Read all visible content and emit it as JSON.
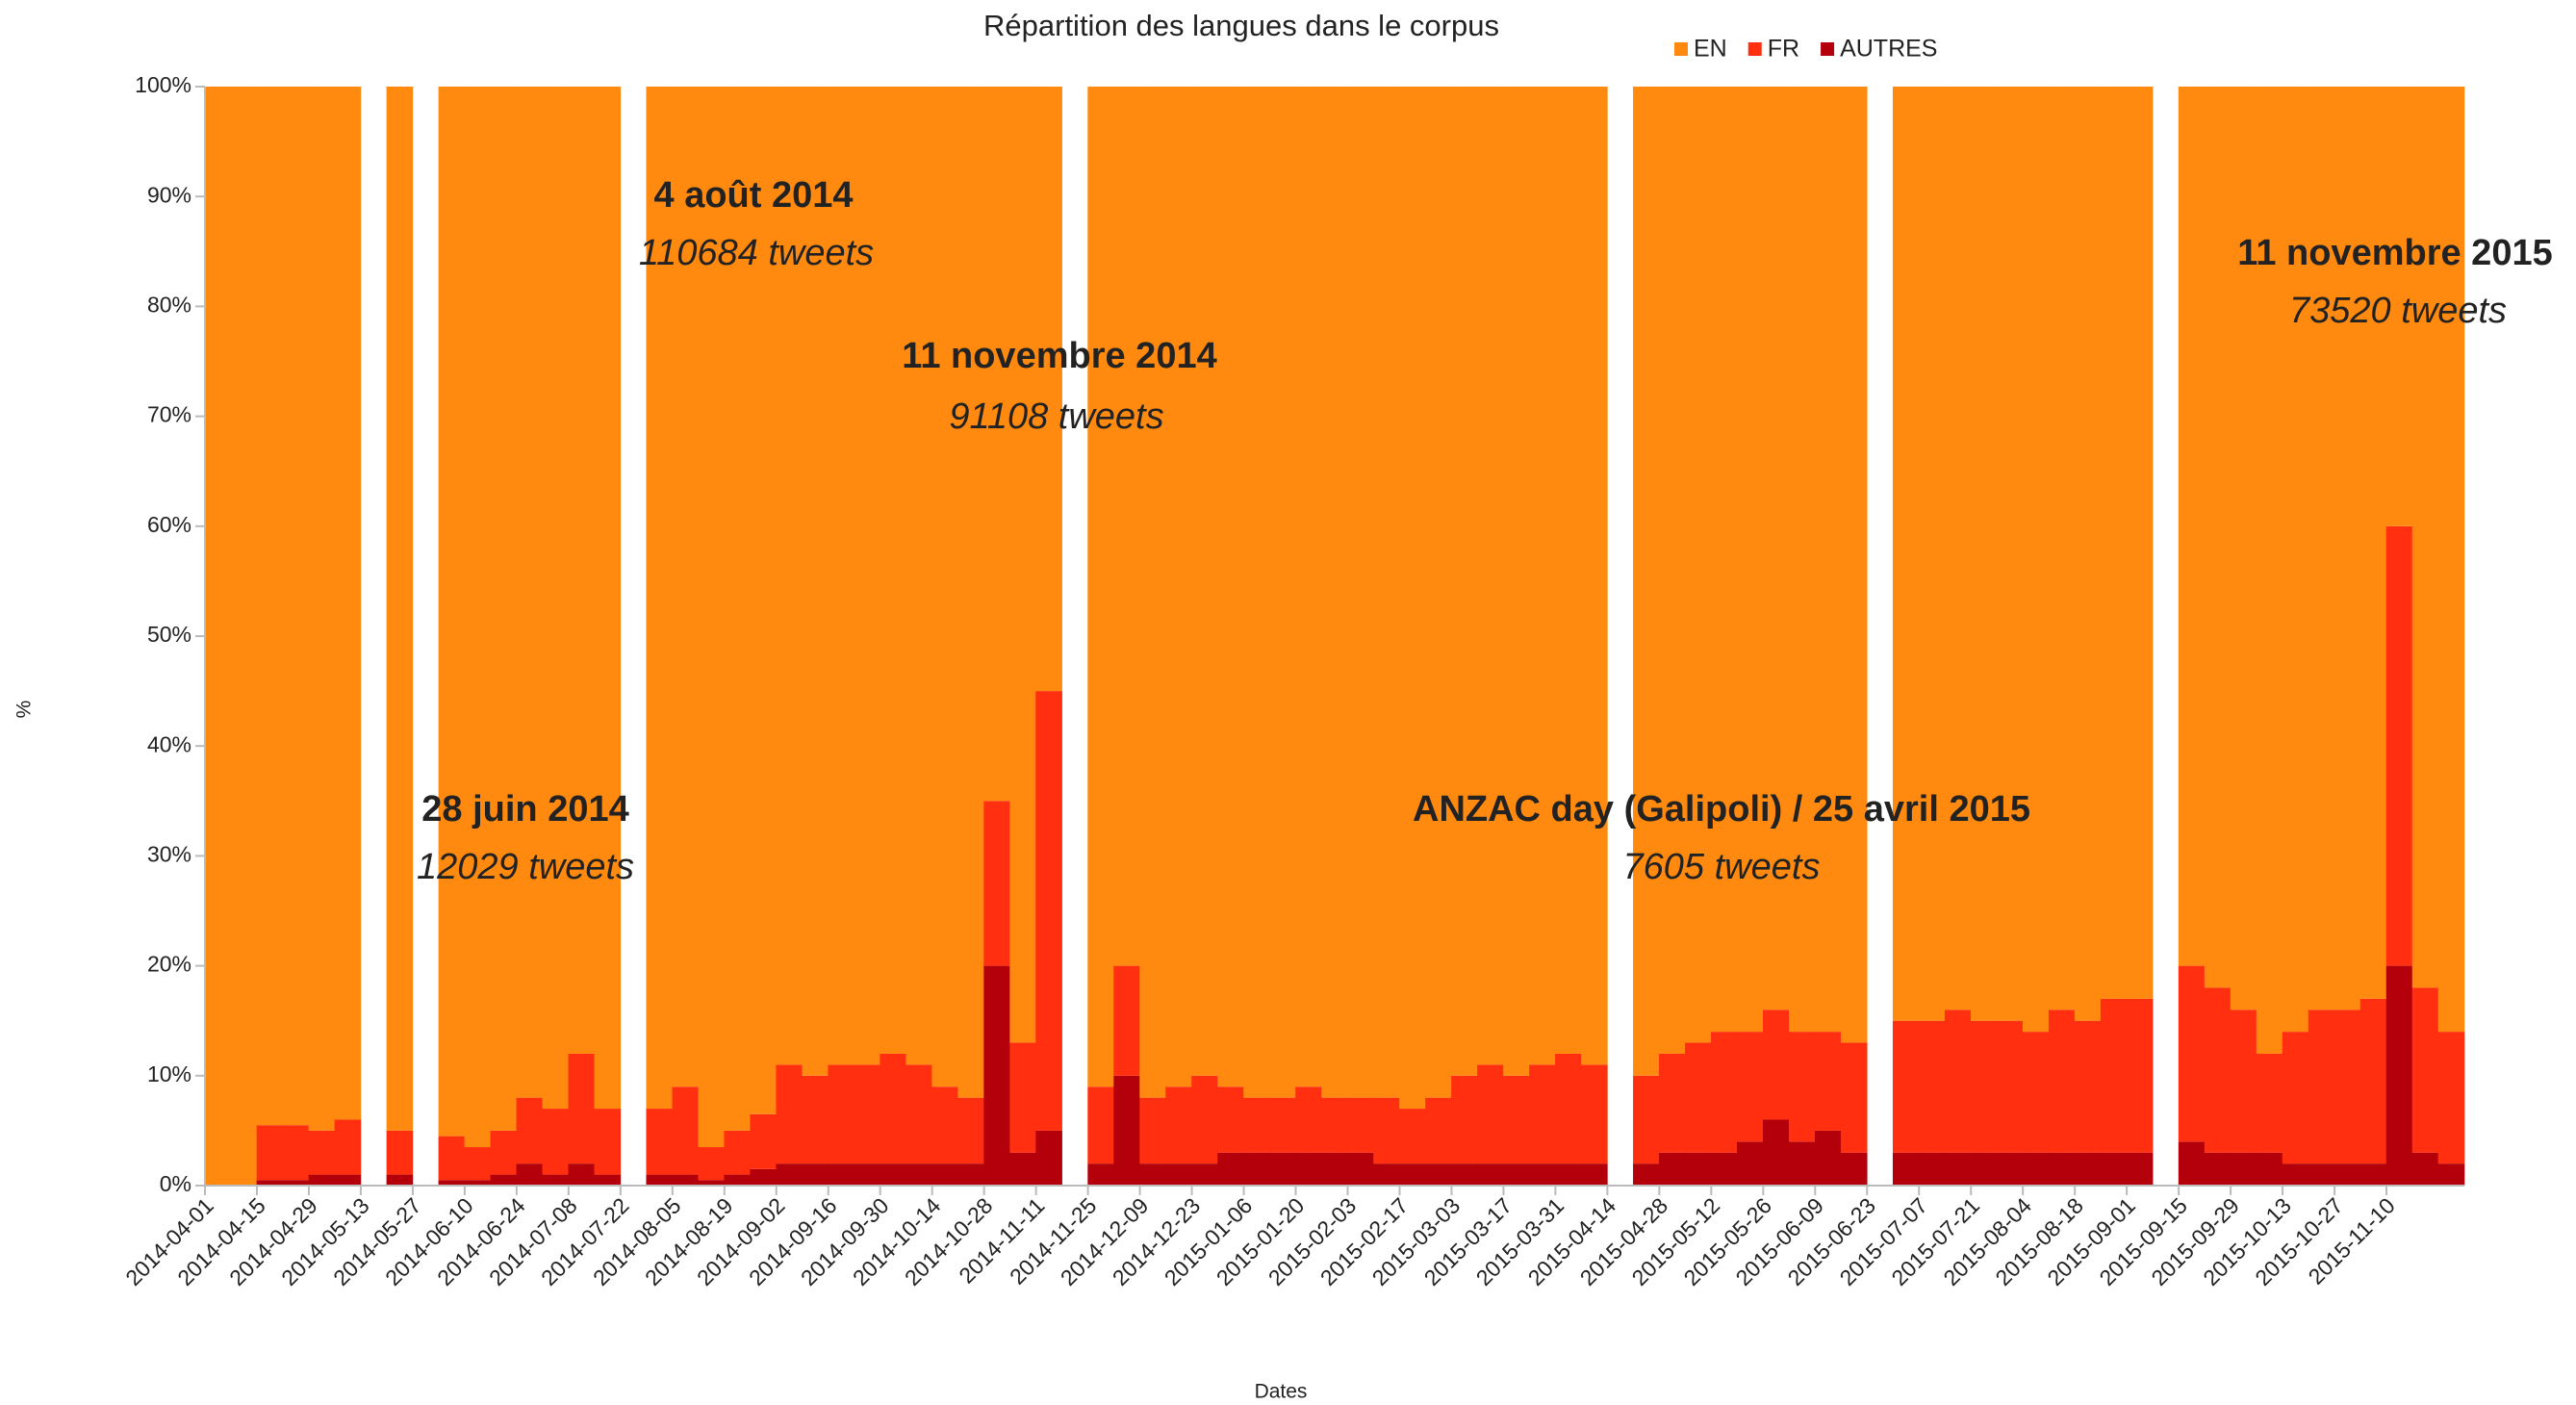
{
  "chart_data": {
    "type": "stacked_area_100",
    "title": "Répartition des langues dans le corpus",
    "x_label": "Dates",
    "y_label": "%",
    "categories": [
      "2014-04-01",
      null,
      "2014-04-15",
      null,
      "2014-04-29",
      null,
      "2014-05-13",
      null,
      "2014-05-27",
      null,
      "2014-06-10",
      null,
      "2014-06-24",
      null,
      "2014-07-08",
      null,
      "2014-07-22",
      null,
      "2014-08-05",
      null,
      "2014-08-19",
      null,
      "2014-09-02",
      null,
      "2014-09-16",
      null,
      "2014-09-30",
      null,
      "2014-10-14",
      null,
      "2014-10-28",
      null,
      "2014-11-11",
      null,
      "2014-11-25",
      null,
      "2014-12-09",
      null,
      "2014-12-23",
      null,
      "2015-01-06",
      null,
      "2015-01-20",
      null,
      "2015-02-03",
      null,
      "2015-02-17",
      null,
      "2015-03-03",
      null,
      "2015-03-17",
      null,
      "2015-03-31",
      null,
      "2015-04-14",
      null,
      "2015-04-28",
      null,
      "2015-05-12",
      null,
      "2015-05-26",
      null,
      "2015-06-09",
      null,
      "2015-06-23",
      null,
      "2015-07-07",
      null,
      "2015-07-21",
      null,
      "2015-08-04",
      null,
      "2015-08-18",
      null,
      "2015-09-01",
      null,
      "2015-09-15",
      null,
      "2015-09-29",
      null,
      "2015-10-13",
      null,
      "2015-10-27",
      null,
      "2015-11-10",
      null,
      null
    ],
    "series": [
      {
        "name": "AUTRES",
        "color": "#b3000a",
        "values": [
          0,
          0,
          0.5,
          0.5,
          1,
          1,
          null,
          1,
          null,
          0.5,
          0.5,
          1,
          2,
          1,
          2,
          1,
          null,
          1,
          1,
          0.5,
          1,
          1.5,
          2,
          2,
          2,
          2,
          2,
          2,
          2,
          2,
          20,
          3,
          5,
          null,
          2,
          10,
          2,
          2,
          2,
          3,
          3,
          3,
          3,
          3,
          3,
          2,
          2,
          2,
          2,
          2,
          2,
          2,
          2,
          2,
          null,
          2,
          3,
          3,
          3,
          4,
          6,
          4,
          5,
          3,
          null,
          3,
          3,
          3,
          3,
          3,
          3,
          3,
          3,
          3,
          3,
          null,
          4,
          3,
          3,
          3,
          2,
          2,
          2,
          2,
          20,
          3,
          2
        ]
      },
      {
        "name": "FR",
        "color": "#ff2f0f",
        "values": [
          0,
          0,
          5,
          5,
          4,
          5,
          null,
          4,
          null,
          4,
          3,
          4,
          6,
          6,
          10,
          6,
          null,
          6,
          8,
          3,
          4,
          5,
          9,
          8,
          9,
          9,
          10,
          9,
          7,
          6,
          15,
          10,
          40,
          null,
          7,
          10,
          6,
          7,
          8,
          6,
          5,
          5,
          6,
          5,
          5,
          6,
          5,
          6,
          8,
          9,
          8,
          9,
          10,
          9,
          null,
          8,
          9,
          10,
          11,
          10,
          10,
          10,
          9,
          10,
          null,
          12,
          12,
          13,
          12,
          12,
          11,
          13,
          12,
          14,
          14,
          null,
          16,
          15,
          13,
          9,
          12,
          14,
          14,
          15,
          40,
          15,
          12
        ]
      },
      {
        "name": "EN",
        "color": "#ff8a0f",
        "values": [
          100,
          100,
          94.5,
          94.5,
          95,
          94,
          null,
          95,
          null,
          95.5,
          96.5,
          95,
          92,
          93,
          88,
          93,
          null,
          93,
          91,
          96.5,
          95,
          93.5,
          89,
          90,
          89,
          89,
          88,
          89,
          91,
          92,
          65,
          87,
          55,
          null,
          91,
          80,
          92,
          91,
          90,
          91,
          92,
          92,
          91,
          92,
          92,
          92,
          93,
          92,
          90,
          89,
          90,
          89,
          88,
          89,
          null,
          90,
          88,
          87,
          86,
          86,
          84,
          86,
          86,
          87,
          null,
          85,
          85,
          84,
          85,
          85,
          86,
          84,
          85,
          83,
          83,
          null,
          80,
          82,
          84,
          88,
          86,
          84,
          84,
          83,
          40,
          82,
          86
        ]
      }
    ],
    "ylim": [
      0,
      100
    ],
    "yticks": [
      {
        "value": 0,
        "label": "0%"
      },
      {
        "value": 10,
        "label": "10%"
      },
      {
        "value": 20,
        "label": "20%"
      },
      {
        "value": 30,
        "label": "30%"
      },
      {
        "value": 40,
        "label": "40%"
      },
      {
        "value": 50,
        "label": "50%"
      },
      {
        "value": 60,
        "label": "60%"
      },
      {
        "value": 70,
        "label": "70%"
      },
      {
        "value": 80,
        "label": "80%"
      },
      {
        "value": 90,
        "label": "90%"
      },
      {
        "value": 100,
        "label": "100%"
      }
    ],
    "legend": "top-right",
    "grid": false,
    "annotations": [
      {
        "title": "4 août 2014",
        "text": "110684 tweets"
      },
      {
        "title": "11 novembre 2014",
        "text": "91108 tweets"
      },
      {
        "title": "11 novembre 2015",
        "text": "73520 tweets"
      },
      {
        "title": "28 juin 2014",
        "text": "12029 tweets"
      },
      {
        "title": "ANZAC day (Galipoli) / 25 avril 2015",
        "text": "7605 tweets"
      }
    ]
  }
}
